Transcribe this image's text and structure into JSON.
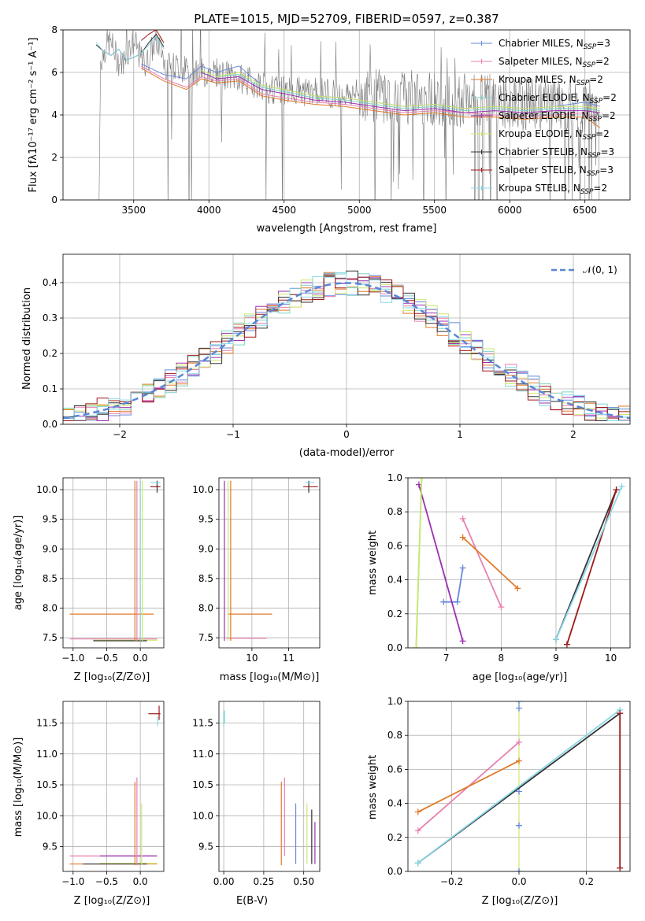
{
  "colors": {
    "chabrier_miles": "#6688dd",
    "salpeter_miles": "#e87fb0",
    "kroupa_miles": "#e07a2a",
    "chabrier_elodie": "#7fd1c8",
    "salpeter_elodie": "#9b30b0",
    "kroupa_elodie": "#cde86a",
    "chabrier_stelib": "#333333",
    "salpeter_stelib": "#a01818",
    "kroupa_stelib": "#88d8e8",
    "data": "#777777",
    "normal": "#5a86d6"
  },
  "spectrum": {
    "title": "PLATE=1015, MJD=52709, FIBERID=0597, z=0.387",
    "xlabel": "wavelength [Angstrom, rest frame]",
    "ylabel": "Flux [fλ10⁻¹⁷ erg cm⁻² s⁻¹ A⁻¹]",
    "xticks": [
      "3500",
      "4000",
      "4500",
      "5000",
      "5500",
      "6000",
      "6500"
    ],
    "yticks": [
      "0",
      "2",
      "4",
      "6",
      "8"
    ],
    "legend": [
      "Chabrier MILES, N_SSP=3",
      "Salpeter MILES, N_SSP=2",
      "Kroupa MILES, N_SSP=2",
      "Chabrier ELODIE, N_SSP=2",
      "Salpeter ELODIE, N_SSP=2",
      "Kroupa ELODIE, N_SSP=2",
      "Chabrier STELIB, N_SSP=3",
      "Salpeter STELIB, N_SSP=3",
      "Kroupa STELIB, N_SSP=2"
    ]
  },
  "residual": {
    "xlabel": "(data-model)/error",
    "ylabel": "Normed distribution",
    "xticks": [
      "−2",
      "−1",
      "0",
      "1",
      "2"
    ],
    "yticks": [
      "0.0",
      "0.1",
      "0.2",
      "0.3",
      "0.4"
    ],
    "legend": "𝒩(0, 1)"
  },
  "panel_age_z": {
    "xlabel": "Z [log₁₀(Z/Z⊙)]",
    "ylabel": "age  [log₁₀(age/yr)]",
    "xticks": [
      "−1.0",
      "−0.5",
      "0.0"
    ],
    "yticks": [
      "7.5",
      "8.0",
      "8.5",
      "9.0",
      "9.5",
      "10.0"
    ]
  },
  "panel_age_mass": {
    "xlabel": "mass [log₁₀(M/M⊙)]",
    "xticks": [
      "10",
      "11"
    ],
    "yticks": [
      "7.5",
      "8.0",
      "8.5",
      "9.0",
      "9.5",
      "10.0"
    ]
  },
  "panel_weight_age": {
    "xlabel": "age  [log₁₀(age/yr)]",
    "ylabel": "mass weight",
    "xticks": [
      "7",
      "8",
      "9",
      "10"
    ],
    "yticks": [
      "0.0",
      "0.2",
      "0.4",
      "0.6",
      "0.8",
      "1.0"
    ]
  },
  "panel_mass_z": {
    "xlabel": "Z [log₁₀(Z/Z⊙)]",
    "ylabel": "mass [log₁₀(M/M⊙)]",
    "xticks": [
      "−1.0",
      "−0.5",
      "0.0"
    ],
    "yticks": [
      "9.5",
      "10.0",
      "10.5",
      "11.0",
      "11.5"
    ]
  },
  "panel_mass_ebv": {
    "xlabel": "E(B-V)",
    "xticks": [
      "0.00",
      "0.25",
      "0.50"
    ],
    "yticks": [
      "9.5",
      "10.0",
      "10.5",
      "11.0",
      "11.5"
    ]
  },
  "panel_weight_z": {
    "xlabel": "Z [log₁₀(Z/Z⊙)]",
    "ylabel": "mass weight",
    "xticks": [
      "−0.2",
      "0.0",
      "0.2"
    ],
    "yticks": [
      "0.0",
      "0.2",
      "0.4",
      "0.6",
      "0.8",
      "1.0"
    ]
  },
  "chart_data": [
    {
      "type": "line",
      "title": "PLATE=1015, MJD=52709, FIBERID=0597, z=0.387",
      "xlabel": "wavelength [Angstrom, rest frame]",
      "ylabel": "Flux [fλ10⁻¹⁷ erg cm⁻² s⁻¹ A⁻¹]",
      "xlim": [
        3030,
        6800
      ],
      "ylim": [
        0,
        8
      ],
      "legend_position": "right",
      "series": [
        {
          "name": "Chabrier MILES, N_SSP=3",
          "x": [
            3550,
            3700,
            3850,
            3950,
            4050,
            4200,
            4350,
            4500,
            4700,
            4900,
            5100,
            5300,
            5500,
            5700,
            5900,
            6100,
            6300,
            6500,
            6600
          ],
          "y": [
            6.4,
            5.9,
            5.7,
            6.3,
            6.0,
            6.3,
            5.4,
            5.2,
            4.9,
            4.8,
            4.6,
            4.4,
            4.5,
            4.3,
            4.4,
            4.3,
            4.4,
            4.6,
            4.4
          ]
        },
        {
          "name": "Salpeter MILES, N_SSP=2",
          "x": [
            3550,
            3700,
            3850,
            3950,
            4050,
            4200,
            4350,
            4500,
            4700,
            4900,
            5100,
            5300,
            5500,
            5700,
            5900,
            6100,
            6300,
            6500,
            6600
          ],
          "y": [
            6.3,
            5.7,
            5.3,
            5.8,
            5.6,
            5.7,
            5.0,
            4.8,
            4.6,
            4.5,
            4.3,
            4.1,
            4.2,
            4.1,
            4.0,
            3.9,
            4.0,
            4.1,
            3.8
          ]
        },
        {
          "name": "Kroupa MILES, N_SSP=2",
          "x": [
            3550,
            3700,
            3850,
            3950,
            4050,
            4200,
            4350,
            4500,
            4700,
            4900,
            5100,
            5300,
            5500,
            5700,
            5900,
            6100,
            6300,
            6500,
            6600
          ],
          "y": [
            6.2,
            5.6,
            5.2,
            5.7,
            5.5,
            5.6,
            4.9,
            4.7,
            4.5,
            4.4,
            4.2,
            4.0,
            4.1,
            3.9,
            3.9,
            3.8,
            3.9,
            3.9,
            3.4
          ]
        },
        {
          "name": "Chabrier ELODIE, N_SSP=2",
          "x": [
            3950,
            4050,
            4200,
            4350,
            4500,
            4700,
            4900,
            5100,
            5300,
            5500,
            5700,
            5900,
            6100,
            6300,
            6500,
            6600
          ],
          "y": [
            6.1,
            5.8,
            5.9,
            5.3,
            5.1,
            4.8,
            4.7,
            4.5,
            4.3,
            4.4,
            4.2,
            4.3,
            4.2,
            4.3,
            4.3,
            4.2
          ]
        },
        {
          "name": "Salpeter ELODIE, N_SSP=2",
          "x": [
            3950,
            4050,
            4200,
            4350,
            4500,
            4700,
            4900,
            5100,
            5300,
            5500,
            5700,
            5900,
            6100,
            6300,
            6500,
            6600
          ],
          "y": [
            6.0,
            5.7,
            5.8,
            5.2,
            5.0,
            4.7,
            4.6,
            4.4,
            4.2,
            4.3,
            4.1,
            4.2,
            4.1,
            4.2,
            4.2,
            4.1
          ]
        },
        {
          "name": "Kroupa ELODIE, N_SSP=2",
          "x": [
            3950,
            4050,
            4200,
            4350,
            4500,
            4700,
            4900,
            5100,
            5300,
            5500,
            5700,
            5900,
            6100,
            6300,
            6500,
            6600
          ],
          "y": [
            6.1,
            5.8,
            6.0,
            5.4,
            5.2,
            4.9,
            4.8,
            4.6,
            4.4,
            4.5,
            4.3,
            4.4,
            4.3,
            4.4,
            4.4,
            4.3
          ]
        },
        {
          "name": "Chabrier STELIB, N_SSP=3",
          "x": [
            3250,
            3300,
            3350,
            3400,
            3450,
            3500,
            3550,
            3600,
            3650,
            3700
          ],
          "y": [
            7.3,
            7.0,
            6.8,
            7.1,
            6.6,
            6.7,
            6.9,
            7.4,
            7.8,
            7.2
          ]
        },
        {
          "name": "Salpeter STELIB, N_SSP=3",
          "x": [
            3550,
            3600,
            3650,
            3700
          ],
          "y": [
            7.5,
            7.8,
            8.0,
            7.4
          ]
        },
        {
          "name": "Kroupa STELIB, N_SSP=2",
          "x": [
            3250,
            3300,
            3350,
            3400,
            3450,
            3500,
            3550,
            3600,
            3650,
            3700
          ],
          "y": [
            7.4,
            7.0,
            6.8,
            7.1,
            6.6,
            6.7,
            6.9,
            7.3,
            7.7,
            7.1
          ]
        }
      ]
    },
    {
      "type": "line",
      "xlabel": "(data-model)/error",
      "ylabel": "Normed distribution",
      "xlim": [
        -2.5,
        2.5
      ],
      "ylim": [
        0,
        0.48
      ],
      "legend_position": "top-right",
      "series": [
        {
          "name": "𝒩(0, 1)",
          "x": [
            -2.5,
            -2.0,
            -1.5,
            -1.0,
            -0.5,
            0.0,
            0.5,
            1.0,
            1.5,
            2.0,
            2.5
          ],
          "y": [
            0.018,
            0.054,
            0.13,
            0.242,
            0.352,
            0.399,
            0.352,
            0.242,
            0.13,
            0.054,
            0.018
          ]
        }
      ]
    },
    {
      "type": "scatter",
      "xlabel": "Z [log₁₀(Z/Z⊙)]",
      "ylabel": "age  [log₁₀(age/yr)]",
      "xlim": [
        -1.15,
        0.35
      ],
      "ylim": [
        7.33,
        10.2
      ],
      "series": [
        {
          "name": "Kroupa MILES, N_SSP=2",
          "x": [
            -0.05
          ],
          "y": [
            7.9
          ]
        },
        {
          "name": "Salpeter STELIB, N_SSP=3",
          "x": [
            0.25
          ],
          "y": [
            10.05
          ]
        }
      ]
    },
    {
      "type": "scatter",
      "xlabel": "mass [log₁₀(M/M⊙)]",
      "xlim": [
        9.1,
        11.85
      ],
      "ylim": [
        7.33,
        10.2
      ],
      "series": [
        {
          "name": "Kroupa MILES, N_SSP=2",
          "x": [
            9.4
          ],
          "y": [
            7.9
          ]
        },
        {
          "name": "Salpeter STELIB, N_SSP=3",
          "x": [
            11.6
          ],
          "y": [
            10.05
          ]
        }
      ]
    },
    {
      "type": "line",
      "xlabel": "age  [log₁₀(age/yr)]",
      "ylabel": "mass weight",
      "xlim": [
        6.3,
        10.35
      ],
      "ylim": [
        0,
        1
      ],
      "series": [
        {
          "name": "Chabrier MILES, N_SSP=3",
          "x": [
            7.3,
            7.2,
            6.95
          ],
          "y": [
            0.47,
            0.27,
            0.27
          ]
        },
        {
          "name": "Salpeter MILES, N_SSP=2",
          "x": [
            7.3,
            8.0
          ],
          "y": [
            0.76,
            0.24
          ]
        },
        {
          "name": "Kroupa MILES, N_SSP=2",
          "x": [
            7.3,
            8.3
          ],
          "y": [
            0.65,
            0.35
          ]
        },
        {
          "name": "Chabrier ELODIE, N_SSP=2",
          "x": [
            6.45,
            6.55
          ],
          "y": [
            0.0,
            1.0
          ]
        },
        {
          "name": "Salpeter ELODIE, N_SSP=2",
          "x": [
            6.5,
            7.3
          ],
          "y": [
            0.96,
            0.04
          ]
        },
        {
          "name": "Kroupa ELODIE, N_SSP=2",
          "x": [
            6.45,
            6.55
          ],
          "y": [
            0.0,
            1.0
          ]
        },
        {
          "name": "Chabrier STELIB, N_SSP=3",
          "x": [
            9.0,
            10.1
          ],
          "y": [
            0.05,
            0.93
          ]
        },
        {
          "name": "Salpeter STELIB, N_SSP=3",
          "x": [
            9.2,
            10.1
          ],
          "y": [
            0.02,
            0.93
          ]
        },
        {
          "name": "Kroupa STELIB, N_SSP=2",
          "x": [
            9.0,
            10.2
          ],
          "y": [
            0.05,
            0.95
          ]
        }
      ]
    },
    {
      "type": "scatter",
      "xlabel": "Z [log₁₀(Z/Z⊙)]",
      "ylabel": "mass [log₁₀(M/M⊙)]",
      "xlim": [
        -1.15,
        0.35
      ],
      "ylim": [
        9.1,
        11.85
      ],
      "series": [
        {
          "name": "Salpeter STELIB, N_SSP=3",
          "x": [
            0.25
          ],
          "y": [
            11.65
          ]
        }
      ]
    },
    {
      "type": "scatter",
      "xlabel": "E(B-V)",
      "xlim": [
        -0.03,
        0.6
      ],
      "ylim": [
        9.1,
        11.85
      ],
      "series": [
        {
          "name": "Chabrier MILES, N_SSP=3",
          "x": [
            0.45
          ],
          "y": [
            9.7
          ]
        },
        {
          "name": "Salpeter MILES, N_SSP=2",
          "x": [
            0.38
          ],
          "y": [
            10.0
          ]
        },
        {
          "name": "Kroupa MILES, N_SSP=2",
          "x": [
            0.36
          ],
          "y": [
            9.9
          ]
        }
      ]
    },
    {
      "type": "line",
      "xlabel": "Z [log₁₀(Z/Z⊙)]",
      "ylabel": "mass weight",
      "xlim": [
        -0.33,
        0.33
      ],
      "ylim": [
        0,
        1
      ],
      "series": [
        {
          "name": "Salpeter MILES, N_SSP=2",
          "x": [
            -0.3,
            0.0
          ],
          "y": [
            0.24,
            0.76
          ]
        },
        {
          "name": "Kroupa MILES, N_SSP=2",
          "x": [
            -0.3,
            0.0
          ],
          "y": [
            0.35,
            0.65
          ]
        },
        {
          "name": "Chabrier STELIB, N_SSP=3",
          "x": [
            -0.3,
            0.3
          ],
          "y": [
            0.05,
            0.93
          ]
        },
        {
          "name": "Kroupa STELIB, N_SSP=2",
          "x": [
            -0.3,
            0.3
          ],
          "y": [
            0.05,
            0.95
          ]
        },
        {
          "name": "Salpeter STELIB, N_SSP=3",
          "x": [
            0.3,
            0.3
          ],
          "y": [
            0.02,
            0.93
          ]
        }
      ]
    }
  ]
}
